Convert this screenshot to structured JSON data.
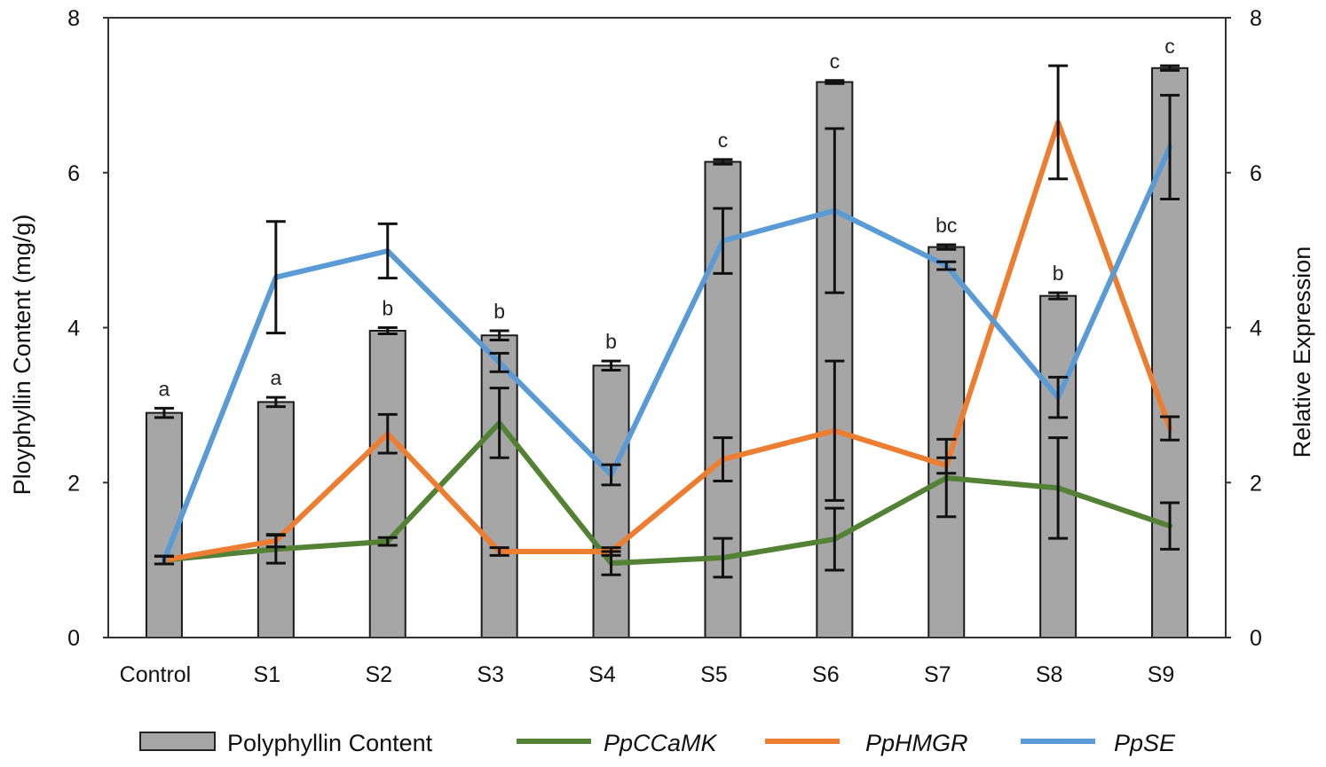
{
  "chart_data": {
    "type": "bar",
    "categories": [
      "Control",
      "S1",
      "S2",
      "S3",
      "S4",
      "S5",
      "S6",
      "S7",
      "S8",
      "S9"
    ],
    "ylabel": "Ployphyllin Content (mg/g)",
    "y2label": "Relative Expression",
    "ylim": [
      0,
      8
    ],
    "y2lim": [
      0,
      8
    ],
    "yticks": [
      "0",
      "2",
      "4",
      "6",
      "8"
    ],
    "grid": false,
    "legend_position": "bottom",
    "bars": {
      "name": "Polyphyllin Content",
      "color": "#a6a6a6",
      "values": [
        2.9,
        3.04,
        3.96,
        3.9,
        3.51,
        6.14,
        7.17,
        5.04,
        4.41,
        7.35
      ],
      "errors": [
        0.06,
        0.06,
        0.04,
        0.06,
        0.06,
        0.03,
        0.02,
        0.03,
        0.04,
        0.03
      ],
      "labels": [
        "a",
        "a",
        "b",
        "b",
        "b",
        "c",
        "c",
        "bc",
        "b",
        "c"
      ]
    },
    "series": [
      {
        "name": "PpCCaMK",
        "color": "#548235",
        "values": [
          1.0,
          1.14,
          1.24,
          2.77,
          0.96,
          1.03,
          1.27,
          2.06,
          1.93,
          1.44
        ],
        "errors": [
          0.05,
          0.18,
          0.05,
          0.45,
          0.15,
          0.25,
          0.4,
          0.5,
          0.65,
          0.3
        ]
      },
      {
        "name": "PpHMGR",
        "color": "#ed7d31",
        "values": [
          1.0,
          1.25,
          2.63,
          1.11,
          1.11,
          2.3,
          2.67,
          2.22,
          6.65,
          2.7
        ],
        "errors": [
          0.05,
          0.08,
          0.25,
          0.05,
          0.05,
          0.28,
          0.9,
          0.1,
          0.73,
          0.15
        ]
      },
      {
        "name": "PpSE",
        "color": "#5b9bd5",
        "values": [
          1.0,
          4.65,
          4.99,
          3.55,
          2.1,
          5.12,
          5.51,
          4.8,
          3.1,
          6.33
        ],
        "errors": [
          0.05,
          0.72,
          0.35,
          0.12,
          0.13,
          0.42,
          1.06,
          0.05,
          0.26,
          0.67
        ]
      }
    ]
  }
}
